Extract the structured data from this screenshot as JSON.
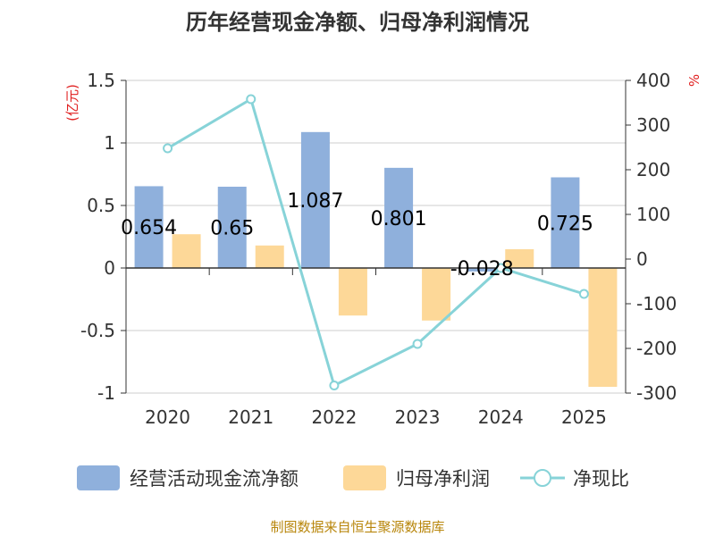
{
  "title": "历年经营现金净额、归母净利润情况",
  "source": "制图数据来自恒生聚源数据库",
  "colors": {
    "cash_flow": "#8fb0dc",
    "net_profit": "#fdd898",
    "ratio": "#87d3d8",
    "axis": "#333333",
    "grid": "#cccccc",
    "unit": "#e02020",
    "source": "#b8860b"
  },
  "chart_data": {
    "type": "bar",
    "title": "历年经营现金净额、归母净利润情况",
    "categories": [
      "2020",
      "2021",
      "2022",
      "2023",
      "2024",
      "2025"
    ],
    "series": [
      {
        "name": "经营活动现金流净额",
        "axis": "left",
        "type": "bar",
        "values": [
          0.654,
          0.65,
          1.087,
          0.801,
          -0.028,
          0.725
        ],
        "labels": [
          "0.654",
          "0.65",
          "1.087",
          "0.801",
          "-0.028",
          "0.725"
        ]
      },
      {
        "name": "归母净利润",
        "axis": "left",
        "type": "bar",
        "values": [
          0.27,
          0.18,
          -0.38,
          -0.42,
          0.15,
          -0.95
        ]
      },
      {
        "name": "净现比",
        "axis": "right",
        "type": "line",
        "values": [
          248,
          358,
          -283,
          -190,
          -20,
          -78
        ]
      }
    ],
    "left_axis": {
      "unit": "(亿元)",
      "ylim": [
        -1,
        1.5
      ],
      "ticks": [
        {
          "v": 1.5,
          "label": "1.5"
        },
        {
          "v": 1,
          "label": "1"
        },
        {
          "v": 0.5,
          "label": "0.5"
        },
        {
          "v": 0,
          "label": "0"
        },
        {
          "v": -0.5,
          "label": "-0.5"
        },
        {
          "v": -1,
          "label": "-1"
        }
      ]
    },
    "right_axis": {
      "unit": "%",
      "ylim": [
        -300,
        400
      ],
      "ticks": [
        {
          "v": 400,
          "label": "400"
        },
        {
          "v": 300,
          "label": "300"
        },
        {
          "v": 200,
          "label": "200"
        },
        {
          "v": 100,
          "label": "100"
        },
        {
          "v": 0,
          "label": "0"
        },
        {
          "v": -100,
          "label": "-100"
        },
        {
          "v": -200,
          "label": "-200"
        },
        {
          "v": -300,
          "label": "-300"
        }
      ]
    },
    "grid": true,
    "legend_position": "bottom"
  }
}
